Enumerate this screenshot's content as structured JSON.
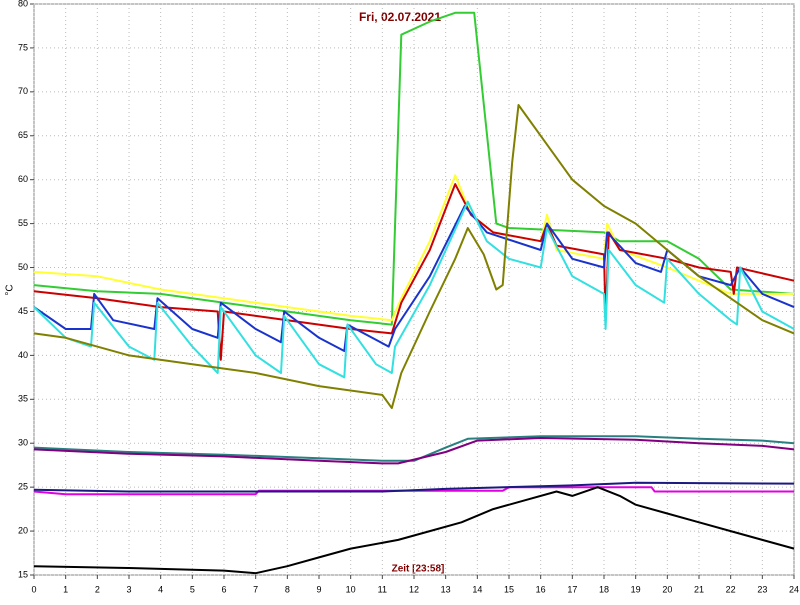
{
  "chart_data": {
    "type": "line",
    "title": "Fri, 02.07.2021",
    "xlabel": "Zeit [23:58]",
    "ylabel": "°C",
    "xlim": [
      0,
      24
    ],
    "ylim": [
      15,
      80
    ],
    "xticks": [
      0,
      1,
      2,
      3,
      4,
      5,
      6,
      7,
      8,
      9,
      10,
      11,
      12,
      13,
      14,
      15,
      16,
      17,
      18,
      19,
      20,
      21,
      22,
      23,
      24
    ],
    "yticks": [
      15,
      20,
      25,
      30,
      35,
      40,
      45,
      50,
      55,
      60,
      65,
      70,
      75,
      80
    ],
    "grid": true,
    "series": [
      {
        "color": "#33cc33",
        "x": [
          0,
          2,
          4,
          6,
          8,
          10,
          11.3,
          11.6,
          12.5,
          13.3,
          13.9,
          14.6,
          15,
          18,
          18.5,
          20,
          21,
          22,
          24
        ],
        "values": [
          48,
          47.3,
          47,
          46,
          45,
          44,
          43.5,
          76.5,
          78,
          79,
          79,
          55,
          54.5,
          54,
          53,
          53,
          51,
          47.5,
          47
        ]
      },
      {
        "color": "#ffff33",
        "x": [
          0,
          2,
          4,
          7,
          10,
          11.3,
          11.6,
          12.5,
          13.3,
          13.8,
          14.5,
          16,
          16.2,
          16.5,
          18,
          18.1,
          18.5,
          20,
          22,
          24
        ],
        "values": [
          49.5,
          49,
          47.5,
          46,
          44.5,
          44,
          46.5,
          53,
          60.5,
          56,
          54,
          53,
          56,
          52,
          51,
          55,
          52,
          50,
          47,
          47
        ]
      },
      {
        "color": "#cc0000",
        "x": [
          0,
          2,
          4,
          5.8,
          5.9,
          6,
          8,
          10,
          11.3,
          11.6,
          12.5,
          13.3,
          13.8,
          14.5,
          16,
          16.2,
          16.5,
          18,
          18.05,
          18.15,
          18.5,
          20,
          21,
          22,
          22.1,
          22.2,
          24
        ],
        "values": [
          47.3,
          46.5,
          45.5,
          45,
          39.5,
          45,
          44,
          43,
          42.5,
          46,
          52,
          59.5,
          56,
          54,
          53,
          55,
          52.5,
          51.5,
          44,
          54,
          52,
          51,
          50,
          49.5,
          47,
          50,
          48.5
        ]
      },
      {
        "color": "#1a33cc",
        "x": [
          0,
          1,
          1.8,
          1.9,
          2.5,
          3.8,
          3.9,
          5,
          5.8,
          5.9,
          7,
          7.8,
          7.9,
          9,
          9.8,
          9.9,
          11.2,
          11.4,
          12.5,
          13.6,
          14.3,
          16,
          16.2,
          17,
          18,
          18.1,
          19,
          19.8,
          20,
          21,
          22,
          22.3,
          23,
          24
        ],
        "values": [
          45.5,
          43,
          43,
          47,
          44,
          43,
          46.5,
          43,
          42,
          46,
          43,
          41.5,
          45,
          42,
          40.5,
          43.5,
          41,
          43,
          49,
          57,
          54,
          52,
          55,
          51,
          50,
          54,
          50.5,
          49.5,
          52,
          49,
          48,
          50,
          47,
          45.5
        ]
      },
      {
        "color": "#33e0e0",
        "x": [
          0,
          1,
          1.8,
          1.9,
          3,
          3.8,
          3.9,
          5,
          5.8,
          5.9,
          7,
          7.8,
          7.9,
          9,
          9.8,
          9.9,
          10.8,
          11.3,
          11.4,
          12.5,
          13.7,
          14.3,
          15,
          16,
          16.2,
          17,
          18,
          18.05,
          18.15,
          19,
          19.9,
          20,
          21,
          22,
          22.2,
          22.3,
          23,
          24
        ],
        "values": [
          45.5,
          42,
          41,
          46,
          41,
          39.5,
          46,
          41,
          38,
          45.5,
          40,
          38,
          44.5,
          39,
          37.5,
          43.5,
          39,
          38,
          41,
          48,
          57.5,
          53,
          51,
          50,
          54.5,
          49,
          47,
          43,
          52,
          48,
          46,
          51,
          47,
          44,
          43.5,
          50,
          45,
          43
        ]
      },
      {
        "color": "#808000",
        "x": [
          0,
          1,
          3,
          5,
          7,
          9,
          11,
          11.3,
          11.6,
          12.5,
          13.3,
          13.7,
          14.2,
          14.6,
          14.8,
          15.1,
          15.3,
          16,
          17,
          18,
          19,
          20,
          21,
          22,
          23,
          24
        ],
        "values": [
          42.5,
          42,
          40,
          39,
          38,
          36.5,
          35.5,
          34,
          38,
          45,
          51,
          54.5,
          51.5,
          47.5,
          48,
          62,
          68.5,
          65,
          60,
          57,
          55,
          52,
          49,
          46.5,
          44,
          42.5
        ]
      },
      {
        "color": "#2a8080",
        "x": [
          0,
          3,
          6,
          9,
          11,
          12,
          13,
          13.7,
          16,
          19,
          21,
          23,
          24
        ],
        "values": [
          29.5,
          29,
          28.7,
          28.3,
          28,
          28,
          29.5,
          30.5,
          30.8,
          30.8,
          30.5,
          30.3,
          30
        ]
      },
      {
        "color": "#800080",
        "x": [
          0,
          3,
          6,
          9,
          11,
          11.5,
          13,
          14,
          16,
          19,
          21,
          23,
          24
        ],
        "values": [
          29.3,
          28.8,
          28.5,
          28,
          27.7,
          27.7,
          29,
          30.3,
          30.6,
          30.4,
          30,
          29.7,
          29.3
        ]
      },
      {
        "color": "#e000e0",
        "x": [
          0,
          1,
          7,
          7.1,
          14.8,
          15,
          19.5,
          19.6,
          24
        ],
        "values": [
          24.5,
          24.2,
          24.2,
          24.6,
          24.6,
          25,
          25,
          24.5,
          24.5
        ]
      },
      {
        "color": "#1a1a80",
        "x": [
          0,
          3,
          11,
          13,
          17,
          19,
          24
        ],
        "values": [
          24.7,
          24.5,
          24.5,
          24.8,
          25.2,
          25.5,
          25.4
        ]
      },
      {
        "color": "#000000",
        "x": [
          0,
          3,
          6,
          7,
          8,
          9,
          10,
          11.5,
          12.5,
          13.5,
          14.5,
          15.5,
          16.5,
          17,
          17.8,
          18.5,
          19,
          20,
          21,
          22,
          23,
          24
        ],
        "values": [
          16,
          15.8,
          15.5,
          15.2,
          16,
          17,
          18,
          19,
          20,
          21,
          22.5,
          23.5,
          24.5,
          24,
          25,
          24,
          23,
          22,
          21,
          20,
          19,
          18
        ]
      }
    ]
  }
}
